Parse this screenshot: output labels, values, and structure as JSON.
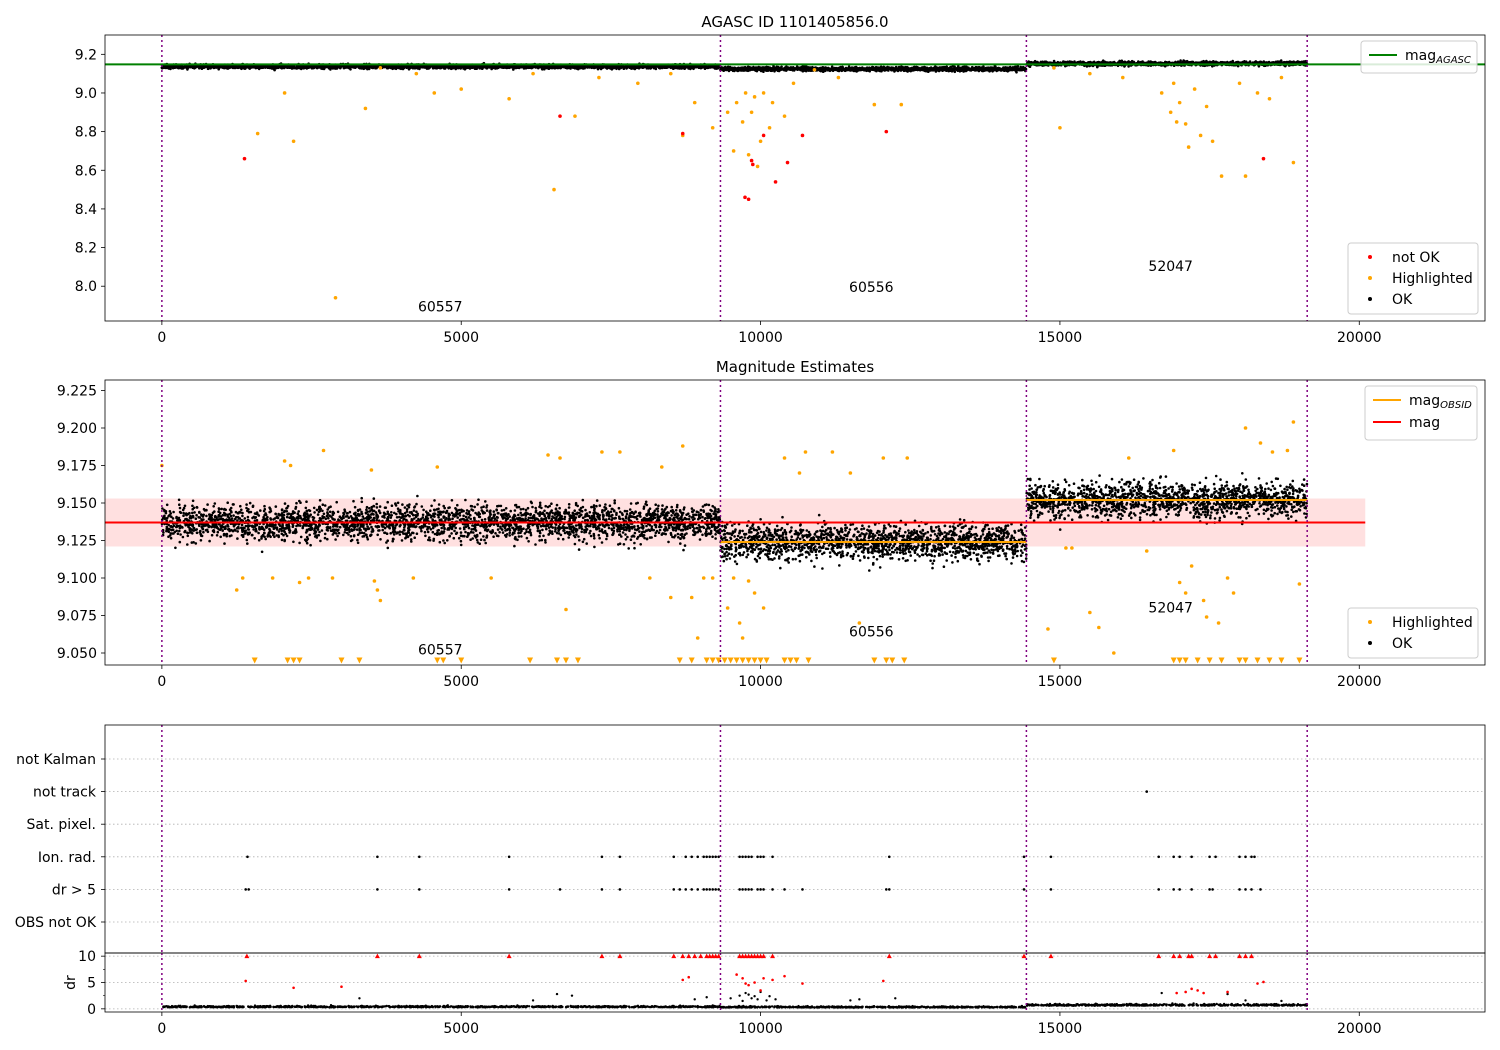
{
  "chart_data": [
    {
      "type": "scatter",
      "title": "AGASC ID 1101405856.0",
      "xlim": [
        -950,
        22100
      ],
      "ylim": [
        7.82,
        9.3
      ],
      "xticks": [
        0,
        5000,
        10000,
        15000,
        20000
      ],
      "yticks": [
        8.0,
        8.2,
        8.4,
        8.6,
        8.8,
        9.0,
        9.2
      ],
      "ytick_decimals": 1,
      "obsid_boundaries": [
        0,
        9330,
        14440,
        19130
      ],
      "obsid_labels": [
        {
          "text": "60557",
          "x": 4650,
          "y": 7.87
        },
        {
          "text": "60556",
          "x": 11850,
          "y": 7.97
        },
        {
          "text": "52047",
          "x": 16850,
          "y": 8.08
        }
      ],
      "lines": [
        {
          "name": "mag_AGASC",
          "y": 9.148,
          "x0": -950,
          "x1": 22100,
          "color": "#008000"
        }
      ],
      "bands": [],
      "legend_lines": {
        "position": "top-right",
        "entries": [
          {
            "name": "mag",
            "sub": "AGASC",
            "color": "#008000"
          }
        ]
      },
      "legend_markers": {
        "position": "bottom-right",
        "entries": [
          {
            "name": "not OK",
            "color": "#ff0000"
          },
          {
            "name": "Highlighted",
            "color": "#ffa500"
          },
          {
            "name": "OK",
            "color": "#000000"
          }
        ]
      },
      "series": [
        {
          "name": "OK",
          "color": "#000000",
          "kind": "band",
          "segments": [
            {
              "x0": 0,
              "x1": 9330,
              "mean": 9.137,
              "spread": 0.016
            },
            {
              "x0": 9330,
              "x1": 14440,
              "mean": 9.124,
              "spread": 0.016
            },
            {
              "x0": 14440,
              "x1": 19130,
              "mean": 9.152,
              "spread": 0.016
            }
          ]
        },
        {
          "name": "Highlighted",
          "color": "#ffa500",
          "kind": "points",
          "x": [
            1600,
            2050,
            2200,
            2900,
            3400,
            3650,
            4250,
            4550,
            5000,
            5800,
            6200,
            6550,
            6900,
            7300,
            7950,
            8500,
            8700,
            8900,
            9200,
            9450,
            9550,
            9600,
            9700,
            9750,
            9800,
            9850,
            9900,
            9950,
            10000,
            10050,
            10150,
            10200,
            10400,
            10550,
            10900,
            11300,
            11900,
            12350,
            14900,
            15000,
            15500,
            16050,
            16700,
            16850,
            16900,
            16950,
            17000,
            17100,
            17150,
            17250,
            17350,
            17450,
            17550,
            17700,
            18000,
            18100,
            18300,
            18500,
            18700,
            18900
          ],
          "y": [
            8.79,
            9.0,
            8.75,
            7.94,
            8.92,
            9.13,
            9.1,
            9.0,
            9.02,
            8.97,
            9.1,
            8.5,
            8.88,
            9.08,
            9.05,
            9.1,
            8.78,
            8.95,
            8.82,
            8.9,
            8.7,
            8.95,
            8.85,
            9.0,
            8.68,
            8.9,
            8.98,
            8.62,
            8.75,
            9.0,
            8.82,
            8.95,
            8.88,
            9.05,
            9.12,
            9.08,
            8.94,
            8.94,
            9.13,
            8.82,
            9.1,
            9.08,
            9.0,
            8.9,
            9.05,
            8.85,
            8.95,
            8.84,
            8.72,
            9.02,
            8.78,
            8.93,
            8.75,
            8.57,
            9.05,
            8.57,
            9.0,
            8.97,
            9.08,
            8.64
          ]
        },
        {
          "name": "not OK",
          "color": "#ff0000",
          "kind": "points",
          "x": [
            1380,
            6650,
            8700,
            9740,
            9800,
            9850,
            9870,
            10050,
            10250,
            10450,
            10700,
            12100,
            18400
          ],
          "y": [
            8.66,
            8.88,
            8.79,
            8.46,
            8.45,
            8.65,
            8.63,
            8.78,
            8.54,
            8.64,
            8.78,
            8.8,
            8.66
          ]
        }
      ]
    },
    {
      "type": "scatter",
      "title": "Magnitude Estimates",
      "xlim": [
        -950,
        22100
      ],
      "ylim": [
        9.042,
        9.232
      ],
      "xticks": [
        0,
        5000,
        10000,
        15000,
        20000
      ],
      "yticks": [
        9.05,
        9.075,
        9.1,
        9.125,
        9.15,
        9.175,
        9.2,
        9.225
      ],
      "ytick_decimals": 3,
      "obsid_boundaries": [
        0,
        9330,
        14440,
        19130
      ],
      "obsid_labels": [
        {
          "text": "60557",
          "x": 4650,
          "y": 9.049
        },
        {
          "text": "60556",
          "x": 11850,
          "y": 9.061
        },
        {
          "text": "52047",
          "x": 16850,
          "y": 9.077
        }
      ],
      "lines": [
        {
          "name": "mag_OBSID",
          "y": 9.137,
          "x0": 0,
          "x1": 9330,
          "color": "#ffa500"
        },
        {
          "name": "mag_OBSID",
          "y": 9.124,
          "x0": 9330,
          "x1": 14440,
          "color": "#ffa500"
        },
        {
          "name": "mag_OBSID",
          "y": 9.152,
          "x0": 14440,
          "x1": 19130,
          "color": "#ffa500"
        },
        {
          "name": "mag",
          "y": 9.137,
          "x0": -950,
          "x1": 20100,
          "color": "#ff0000"
        }
      ],
      "bands": [
        {
          "y0": 9.121,
          "y1": 9.153,
          "x0": -950,
          "x1": 20100,
          "color": "#ff0000",
          "opacity": 0.12
        }
      ],
      "legend_lines": {
        "position": "top-right",
        "entries": [
          {
            "name": "mag",
            "sub": "OBSID",
            "color": "#ffa500"
          },
          {
            "name": "mag",
            "sub": "",
            "color": "#ff0000"
          }
        ]
      },
      "legend_markers": {
        "position": "bottom-right",
        "entries": [
          {
            "name": "Highlighted",
            "color": "#ffa500"
          },
          {
            "name": "OK",
            "color": "#000000"
          }
        ]
      },
      "series": [
        {
          "name": "OK",
          "color": "#000000",
          "kind": "band",
          "segments": [
            {
              "x0": 0,
              "x1": 9330,
              "mean": 9.137,
              "spread": 0.018
            },
            {
              "x0": 9330,
              "x1": 14440,
              "mean": 9.124,
              "spread": 0.018
            },
            {
              "x0": 14440,
              "x1": 19130,
              "mean": 9.152,
              "spread": 0.018
            }
          ]
        },
        {
          "name": "Highlighted",
          "color": "#ffa500",
          "kind": "points",
          "x": [
            0,
            1250,
            1350,
            1850,
            2050,
            2150,
            2300,
            2450,
            2700,
            2850,
            3500,
            3550,
            3600,
            3650,
            4200,
            4600,
            5500,
            6450,
            6650,
            6750,
            7350,
            7650,
            8150,
            8350,
            8500,
            8700,
            8850,
            8950,
            9050,
            9200,
            9450,
            9550,
            9650,
            9700,
            9800,
            9900,
            10050,
            10400,
            10650,
            10750,
            11200,
            11500,
            11650,
            12050,
            12450,
            14800,
            15100,
            15200,
            15500,
            15650,
            15900,
            16150,
            16450,
            16900,
            17000,
            17100,
            17200,
            17400,
            17450,
            17650,
            17800,
            17900,
            18100,
            18350,
            18550,
            18800,
            18900,
            19000
          ],
          "y": [
            9.175,
            9.092,
            9.1,
            9.1,
            9.178,
            9.175,
            9.097,
            9.1,
            9.185,
            9.1,
            9.172,
            9.098,
            9.092,
            9.085,
            9.1,
            9.174,
            9.1,
            9.182,
            9.18,
            9.079,
            9.184,
            9.184,
            9.1,
            9.174,
            9.087,
            9.188,
            9.087,
            9.06,
            9.1,
            9.1,
            9.08,
            9.1,
            9.07,
            9.06,
            9.098,
            9.09,
            9.08,
            9.18,
            9.17,
            9.184,
            9.184,
            9.17,
            9.07,
            9.18,
            9.18,
            9.066,
            9.12,
            9.12,
            9.077,
            9.067,
            9.05,
            9.18,
            9.118,
            9.185,
            9.097,
            9.09,
            9.108,
            9.085,
            9.074,
            9.07,
            9.1,
            9.09,
            9.2,
            9.19,
            9.184,
            9.185,
            9.204,
            9.096
          ]
        },
        {
          "name": "Highlighted (below range)",
          "color": "#ffa500",
          "kind": "markers",
          "x": [
            1550,
            2100,
            2200,
            2300,
            3000,
            3300,
            4600,
            4700,
            5000,
            6150,
            6600,
            6750,
            6950,
            8650,
            8850,
            9100,
            9200,
            9300,
            9400,
            9500,
            9600,
            9700,
            9800,
            9900,
            10000,
            10100,
            10400,
            10500,
            10600,
            10800,
            11900,
            12100,
            12200,
            12400,
            14900,
            16900,
            17000,
            17100,
            17300,
            17500,
            17700,
            18000,
            18100,
            18300,
            18500,
            18700,
            19000
          ],
          "y": [
            9.045,
            9.045,
            9.045,
            9.045,
            9.045,
            9.045,
            9.045,
            9.045,
            9.045,
            9.045,
            9.045,
            9.045,
            9.045,
            9.045,
            9.045,
            9.045,
            9.045,
            9.045,
            9.045,
            9.045,
            9.045,
            9.045,
            9.045,
            9.045,
            9.045,
            9.045,
            9.045,
            9.045,
            9.045,
            9.045,
            9.045,
            9.045,
            9.045,
            9.045,
            9.045,
            9.045,
            9.045,
            9.045,
            9.045,
            9.045,
            9.045,
            9.045,
            9.045,
            9.045,
            9.045,
            9.045,
            9.045
          ]
        }
      ]
    },
    {
      "type": "scatter",
      "title": "",
      "xlim": [
        -950,
        22100
      ],
      "xticks": [
        0,
        5000,
        10000,
        15000,
        20000
      ],
      "obsid_boundaries": [
        0,
        9330,
        14440,
        19130
      ],
      "flag_categories": [
        "not Kalman",
        "not track",
        "Sat. pixel.",
        "Ion. rad.",
        "dr > 5",
        "OBS not OK"
      ],
      "flags": [
        {
          "category": "not track",
          "x": [
            16450
          ]
        },
        {
          "category": "Ion. rad.",
          "x": [
            1430,
            3600,
            4300,
            5800,
            7350,
            7650,
            8550,
            8750,
            8850,
            8950,
            9050,
            9100,
            9150,
            9200,
            9250,
            9300,
            9650,
            9700,
            9750,
            9800,
            9850,
            9950,
            10000,
            10050,
            10200,
            12150,
            14400,
            14850,
            16650,
            16900,
            17000,
            17200,
            17500,
            17600,
            18000,
            18100,
            18200,
            18250
          ]
        },
        {
          "category": "dr > 5",
          "x": [
            1400,
            1450,
            3600,
            4300,
            5800,
            6650,
            7350,
            7650,
            8550,
            8650,
            8750,
            8850,
            8950,
            9050,
            9100,
            9150,
            9200,
            9250,
            9300,
            9650,
            9700,
            9750,
            9800,
            9850,
            9950,
            10000,
            10050,
            10200,
            10400,
            10700,
            12100,
            12150,
            14400,
            14850,
            16650,
            16900,
            17000,
            17200,
            17500,
            17550,
            18000,
            18100,
            18200,
            18350
          ]
        }
      ],
      "dr_panel": {
        "ylabel": "dr",
        "ylim": [
          -0.6,
          10.6
        ],
        "yticks": [
          0,
          5,
          10
        ],
        "capped": {
          "color": "#ff0000",
          "y": 10,
          "x": [
            1420,
            3600,
            4300,
            5800,
            7350,
            7650,
            8550,
            8700,
            8800,
            8900,
            9000,
            9100,
            9150,
            9200,
            9250,
            9300,
            9650,
            9700,
            9750,
            9800,
            9850,
            9900,
            9950,
            10000,
            10050,
            10200,
            12150,
            14400,
            14850,
            16650,
            16900,
            17000,
            17150,
            17200,
            17500,
            17600,
            18000,
            18100,
            18200
          ]
        },
        "bad": {
          "color": "#ff0000",
          "x": [
            1400,
            2200,
            3000,
            8700,
            8800,
            9600,
            9700,
            9750,
            9800,
            9900,
            10000,
            10050,
            10200,
            10400,
            10700,
            12050,
            16950,
            17100,
            17200,
            17300,
            17400,
            17800,
            18300,
            18400
          ],
          "y": [
            5.3,
            4.0,
            4.2,
            5.5,
            6.0,
            6.5,
            5.8,
            4.8,
            4.5,
            5.0,
            3.5,
            5.8,
            5.5,
            6.2,
            4.8,
            5.3,
            3.0,
            3.2,
            3.8,
            3.5,
            3.0,
            3.2,
            4.8,
            5.1
          ]
        },
        "ok_band": {
          "color": "#000000",
          "segments": [
            {
              "x0": 0,
              "x1": 9330,
              "center": 0.3,
              "spread": 0.35
            },
            {
              "x0": 9330,
              "x1": 14440,
              "center": 0.25,
              "spread": 0.3
            },
            {
              "x0": 14440,
              "x1": 19130,
              "center": 0.6,
              "spread": 0.4
            }
          ]
        },
        "ok_scatter": {
          "x": [
            3300,
            6200,
            6600,
            6850,
            8900,
            9100,
            9500,
            9650,
            9700,
            9750,
            9800,
            9850,
            9900,
            9950,
            10000,
            10100,
            10150,
            10250,
            11500,
            11650,
            12250,
            16700,
            17800,
            18100,
            18700
          ],
          "y": [
            2.0,
            1.6,
            2.8,
            2.5,
            1.8,
            2.2,
            2.0,
            2.5,
            1.5,
            3.0,
            2.7,
            2.0,
            2.4,
            1.8,
            3.2,
            1.6,
            2.4,
            1.8,
            1.6,
            1.8,
            2.0,
            3.0,
            2.8,
            1.6,
            1.5
          ]
        }
      }
    }
  ]
}
